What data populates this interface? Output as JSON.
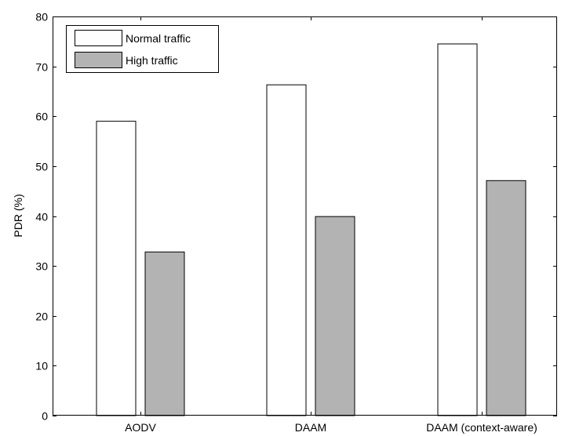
{
  "chart_data": {
    "type": "bar",
    "categories": [
      "AODV",
      "DAAM",
      "DAAM (context-aware)"
    ],
    "series": [
      {
        "name": "Normal traffic",
        "values": [
          59,
          66.3,
          74.5
        ],
        "color": "#ffffff"
      },
      {
        "name": "High traffic",
        "values": [
          32.8,
          39.9,
          47.1
        ],
        "color": "#b3b3b3"
      }
    ],
    "title": "",
    "xlabel": "",
    "ylabel": "PDR (%)",
    "ylim": [
      0,
      80
    ],
    "yticks": [
      0,
      10,
      20,
      30,
      40,
      50,
      60,
      70,
      80
    ],
    "grid": false,
    "legend_position": "top-left"
  }
}
